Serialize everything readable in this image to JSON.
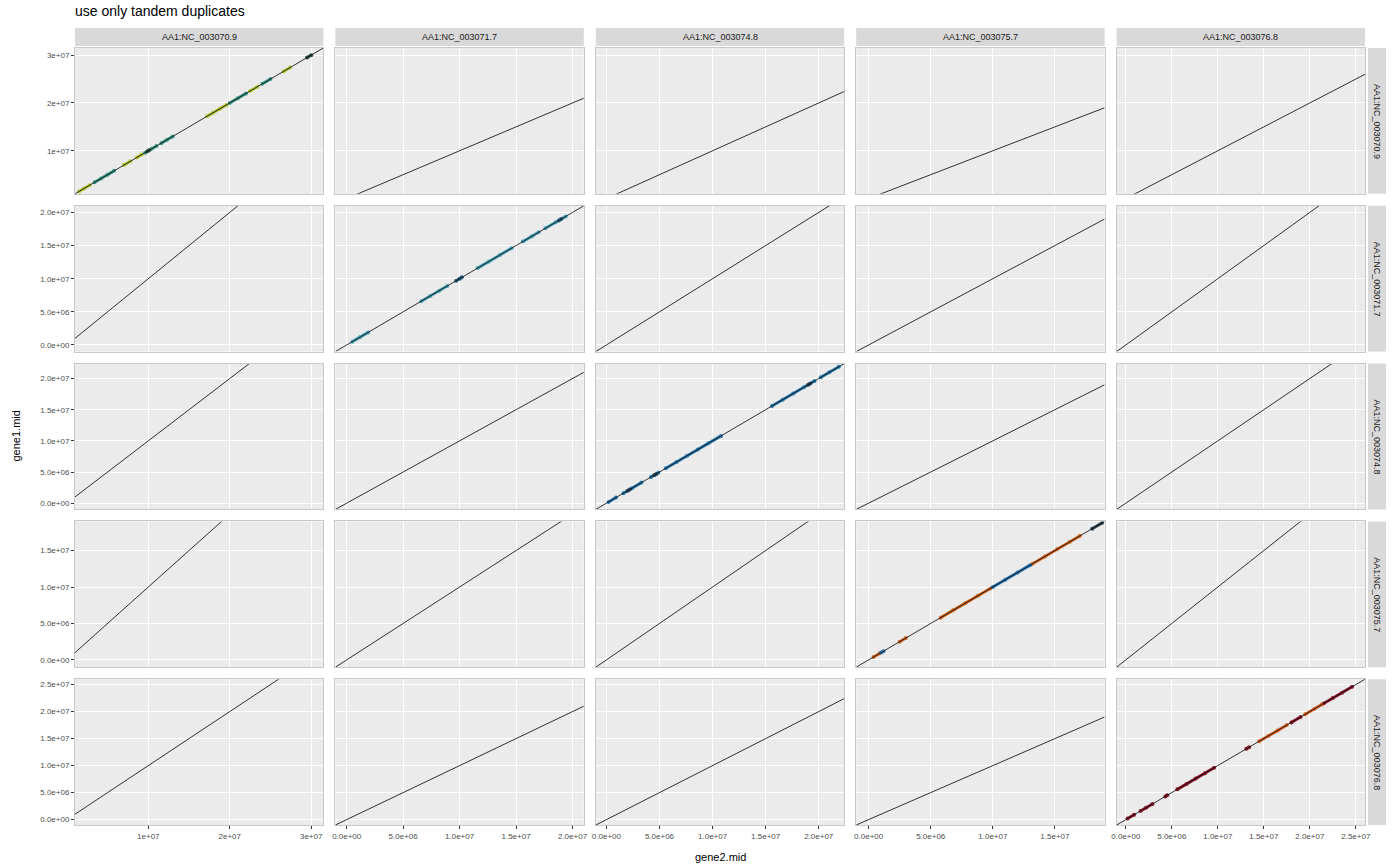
{
  "chart_data": {
    "type": "scatter",
    "title": "use only tandem duplicates",
    "x_label": "gene2.mid",
    "y_label": "gene1.mid",
    "grid": true,
    "marker": "circle",
    "abline": {
      "intercept": 0,
      "slope": 1,
      "color": "#000000"
    },
    "columns": [
      {
        "label": "AA1:NC_003070.9",
        "xlim": [
          1000000.0,
          31500000.0
        ],
        "xticks": [
          {
            "value": 10000000.0,
            "label": "1e+07"
          },
          {
            "value": 20000000.0,
            "label": "2e+07"
          },
          {
            "value": 30000000.0,
            "label": "3e+07"
          }
        ]
      },
      {
        "label": "AA1:NC_003071.7",
        "xlim": [
          -1000000.0,
          21000000.0
        ],
        "xticks": [
          {
            "value": 0,
            "label": "0.0e+00"
          },
          {
            "value": 5000000.0,
            "label": "5.0e+06"
          },
          {
            "value": 10000000.0,
            "label": "1.0e+07"
          },
          {
            "value": 15000000.0,
            "label": "1.5e+07"
          },
          {
            "value": 20000000.0,
            "label": "2.0e+07"
          }
        ]
      },
      {
        "label": "AA1:NC_003074.8",
        "xlim": [
          -1000000.0,
          22400000.0
        ],
        "xticks": [
          {
            "value": 0,
            "label": "0.0e+00"
          },
          {
            "value": 5000000.0,
            "label": "5.0e+06"
          },
          {
            "value": 10000000.0,
            "label": "1.0e+07"
          },
          {
            "value": 15000000.0,
            "label": "1.5e+07"
          },
          {
            "value": 20000000.0,
            "label": "2.0e+07"
          }
        ]
      },
      {
        "label": "AA1:NC_003075.7",
        "xlim": [
          -1000000.0,
          19000000.0
        ],
        "xticks": [
          {
            "value": 0,
            "label": "0.0e+00"
          },
          {
            "value": 5000000.0,
            "label": "5.0e+06"
          },
          {
            "value": 10000000.0,
            "label": "1.0e+07"
          },
          {
            "value": 15000000.0,
            "label": "1.5e+07"
          }
        ]
      },
      {
        "label": "AA1:NC_003076.8",
        "xlim": [
          -1000000.0,
          26000000.0
        ],
        "xticks": [
          {
            "value": 0,
            "label": "0.0e+00"
          },
          {
            "value": 5000000.0,
            "label": "5.0e+06"
          },
          {
            "value": 10000000.0,
            "label": "1.0e+07"
          },
          {
            "value": 15000000.0,
            "label": "1.5e+07"
          },
          {
            "value": 20000000.0,
            "label": "2.0e+07"
          },
          {
            "value": 25000000.0,
            "label": "2.5e+07"
          }
        ]
      }
    ],
    "rows": [
      {
        "label": "AA1:NC_003070.9",
        "ylim": [
          1000000.0,
          31500000.0
        ],
        "yticks": [
          {
            "value": 10000000.0,
            "label": "1e+07"
          },
          {
            "value": 20000000.0,
            "label": "2e+07"
          },
          {
            "value": 30000000.0,
            "label": "3e+07"
          }
        ]
      },
      {
        "label": "AA1:NC_003071.7",
        "ylim": [
          -1000000.0,
          21000000.0
        ],
        "yticks": [
          {
            "value": 0,
            "label": "0.0e+00"
          },
          {
            "value": 5000000.0,
            "label": "5.0e+06"
          },
          {
            "value": 10000000.0,
            "label": "1.0e+07"
          },
          {
            "value": 15000000.0,
            "label": "1.5e+07"
          },
          {
            "value": 20000000.0,
            "label": "2.0e+07"
          }
        ]
      },
      {
        "label": "AA1:NC_003074.8",
        "ylim": [
          -1000000.0,
          22400000.0
        ],
        "yticks": [
          {
            "value": 0,
            "label": "0.0e+00"
          },
          {
            "value": 5000000.0,
            "label": "5.0e+06"
          },
          {
            "value": 10000000.0,
            "label": "1.0e+07"
          },
          {
            "value": 15000000.0,
            "label": "1.5e+07"
          },
          {
            "value": 20000000.0,
            "label": "2.0e+07"
          }
        ]
      },
      {
        "label": "AA1:NC_003075.7",
        "ylim": [
          -1000000.0,
          19000000.0
        ],
        "yticks": [
          {
            "value": 0,
            "label": "0.0e+00"
          },
          {
            "value": 5000000.0,
            "label": "5.0e+06"
          },
          {
            "value": 10000000.0,
            "label": "1.0e+07"
          },
          {
            "value": 15000000.0,
            "label": "1.5e+07"
          }
        ]
      },
      {
        "label": "AA1:NC_003076.8",
        "ylim": [
          -1000000.0,
          26000000.0
        ],
        "yticks": [
          {
            "value": 0,
            "label": "0.0e+00"
          },
          {
            "value": 5000000.0,
            "label": "5.0e+06"
          },
          {
            "value": 10000000.0,
            "label": "1.0e+07"
          },
          {
            "value": 15000000.0,
            "label": "1.5e+07"
          },
          {
            "value": 20000000.0,
            "label": "2.0e+07"
          },
          {
            "value": 25000000.0,
            "label": "2.5e+07"
          }
        ]
      }
    ],
    "panels": [
      {
        "row": "AA1:NC_003070.9",
        "col": "AA1:NC_003070.9",
        "series": [
          {
            "color": "#b5c639",
            "x": [
              1500000.0,
              2100000.0,
              2800000.0,
              null,
              7000000.0,
              7800000.0,
              null,
              8600000.0,
              9200000.0,
              null,
              17200000.0,
              18000000.0,
              18800000.0,
              19600000.0,
              null,
              22500000.0,
              23400000.0,
              null,
              26600000.0,
              27400000.0
            ],
            "y": [
              1500000.0,
              2100000.0,
              2800000.0,
              null,
              7000000.0,
              7800000.0,
              null,
              8600000.0,
              9200000.0,
              null,
              17200000.0,
              18000000.0,
              18800000.0,
              19600000.0,
              null,
              22500000.0,
              23400000.0,
              null,
              26600000.0,
              27400000.0
            ]
          },
          {
            "color": "#3f9a8a",
            "x": [
              3400000.0,
              4200000.0,
              5000000.0,
              5800000.0,
              null,
              9600000.0,
              10400000.0,
              11000000.0,
              null,
              11600000.0,
              12300000.0,
              13000000.0,
              null,
              20000000.0,
              21000000.0,
              22000000.0,
              null,
              24000000.0,
              25000000.0
            ],
            "y": [
              3400000.0,
              4200000.0,
              5000000.0,
              5800000.0,
              null,
              9600000.0,
              10400000.0,
              11000000.0,
              null,
              11600000.0,
              12300000.0,
              13000000.0,
              null,
              20000000.0,
              21000000.0,
              22000000.0,
              null,
              24000000.0,
              25000000.0
            ]
          },
          {
            "color": "#2f4f3f",
            "x": [
              9900000.0,
              10100000.0,
              null,
              29500000.0,
              30000000.0
            ],
            "y": [
              9900000.0,
              10100000.0,
              null,
              29500000.0,
              30000000.0
            ]
          }
        ]
      },
      {
        "row": "AA1:NC_003071.7",
        "col": "AA1:NC_003071.7",
        "series": [
          {
            "color": "#4aa3b5",
            "x": [
              500000.0,
              1200000.0,
              1900000.0,
              null,
              6600000.0,
              7400000.0,
              8200000.0,
              8900000.0,
              null,
              11600000.0,
              12600000.0,
              13600000.0,
              14600000.0,
              null,
              15600000.0,
              16400000.0,
              17000000.0,
              null,
              17600000.0,
              18500000.0,
              19400000.0
            ],
            "y": [
              500000.0,
              1200000.0,
              1900000.0,
              null,
              6600000.0,
              7400000.0,
              8200000.0,
              8900000.0,
              null,
              11600000.0,
              12600000.0,
              13600000.0,
              14600000.0,
              null,
              15600000.0,
              16400000.0,
              17000000.0,
              null,
              17600000.0,
              18500000.0,
              19400000.0
            ]
          },
          {
            "color": "#2b5f7f",
            "x": [
              9700000.0,
              10000000.0,
              10200000.0,
              null,
              18800000.0,
              19000000.0
            ],
            "y": [
              9700000.0,
              10000000.0,
              10200000.0,
              null,
              18800000.0,
              19000000.0
            ]
          }
        ]
      },
      {
        "row": "AA1:NC_003074.8",
        "col": "AA1:NC_003074.8",
        "series": [
          {
            "color": "#2e7db0",
            "x": [
              200000.0,
              900000.0,
              null,
              1600000.0,
              2400000.0,
              3300000.0,
              null,
              4200000.0,
              4900000.0,
              null,
              5600000.0,
              6600000.0,
              7600000.0,
              8600000.0,
              9600000.0,
              10800000.0,
              null,
              15600000.0,
              16600000.0,
              17600000.0,
              18600000.0,
              19600000.0,
              null,
              20200000.0,
              21000000.0,
              21900000.0
            ],
            "y": [
              200000.0,
              900000.0,
              null,
              1600000.0,
              2400000.0,
              3300000.0,
              null,
              4200000.0,
              4900000.0,
              null,
              5600000.0,
              6600000.0,
              7600000.0,
              8600000.0,
              9600000.0,
              10800000.0,
              null,
              15600000.0,
              16600000.0,
              17600000.0,
              18600000.0,
              19600000.0,
              null,
              20200000.0,
              21000000.0,
              21900000.0
            ]
          },
          {
            "color": "#2b4a63",
            "x": [
              2000000.0,
              2200000.0,
              null,
              4500000.0,
              4700000.0,
              null,
              19000000.0,
              19200000.0
            ],
            "y": [
              2000000.0,
              2200000.0,
              null,
              4500000.0,
              4700000.0,
              null,
              19000000.0,
              19200000.0
            ]
          }
        ]
      },
      {
        "row": "AA1:NC_003075.7",
        "col": "AA1:NC_003075.7",
        "series": [
          {
            "color": "#d0691f",
            "x": [
              400000.0,
              900000.0,
              null,
              2500000.0,
              3000000.0,
              null,
              5800000.0,
              6800000.0,
              7800000.0,
              8800000.0,
              9800000.0,
              null,
              13200000.0,
              14200000.0,
              15200000.0,
              16200000.0,
              17000000.0
            ],
            "y": [
              400000.0,
              900000.0,
              null,
              2500000.0,
              3000000.0,
              null,
              5800000.0,
              6800000.0,
              7800000.0,
              8800000.0,
              9800000.0,
              null,
              13200000.0,
              14200000.0,
              15200000.0,
              16200000.0,
              17000000.0
            ]
          },
          {
            "color": "#2e79b5",
            "x": [
              1000000.0,
              1200000.0,
              null,
              10000000.0,
              11000000.0,
              12000000.0,
              13000000.0
            ],
            "y": [
              1000000.0,
              1200000.0,
              null,
              10000000.0,
              11000000.0,
              12000000.0,
              13000000.0
            ]
          },
          {
            "color": "#3a4a55",
            "x": [
              18000000.0,
              18800000.0
            ],
            "y": [
              18000000.0,
              18800000.0
            ]
          }
        ]
      },
      {
        "row": "AA1:NC_003076.8",
        "col": "AA1:NC_003076.8",
        "series": [
          {
            "color": "#8b1a2f",
            "x": [
              200000.0,
              900000.0,
              null,
              1600000.0,
              2200000.0,
              2900000.0,
              null,
              4300000.0,
              4500000.0,
              null,
              5600000.0,
              6600000.0,
              7600000.0,
              8600000.0,
              9600000.0,
              null,
              13100000.0,
              13400000.0,
              null,
              18000000.0,
              19000000.0,
              null,
              21500000.0,
              22500000.0,
              23500000.0,
              24600000.0
            ],
            "y": [
              200000.0,
              900000.0,
              null,
              1600000.0,
              2200000.0,
              2900000.0,
              null,
              4300000.0,
              4500000.0,
              null,
              5600000.0,
              6600000.0,
              7600000.0,
              8600000.0,
              9600000.0,
              null,
              13100000.0,
              13400000.0,
              null,
              18000000.0,
              19000000.0,
              null,
              21500000.0,
              22500000.0,
              23500000.0,
              24600000.0
            ]
          },
          {
            "color": "#d9652a",
            "x": [
              14500000.0,
              15500000.0,
              16500000.0,
              17500000.0,
              null,
              19500000.0,
              20500000.0,
              21300000.0
            ],
            "y": [
              14500000.0,
              15500000.0,
              16500000.0,
              17500000.0,
              null,
              19500000.0,
              20500000.0,
              21300000.0
            ]
          }
        ]
      }
    ]
  }
}
